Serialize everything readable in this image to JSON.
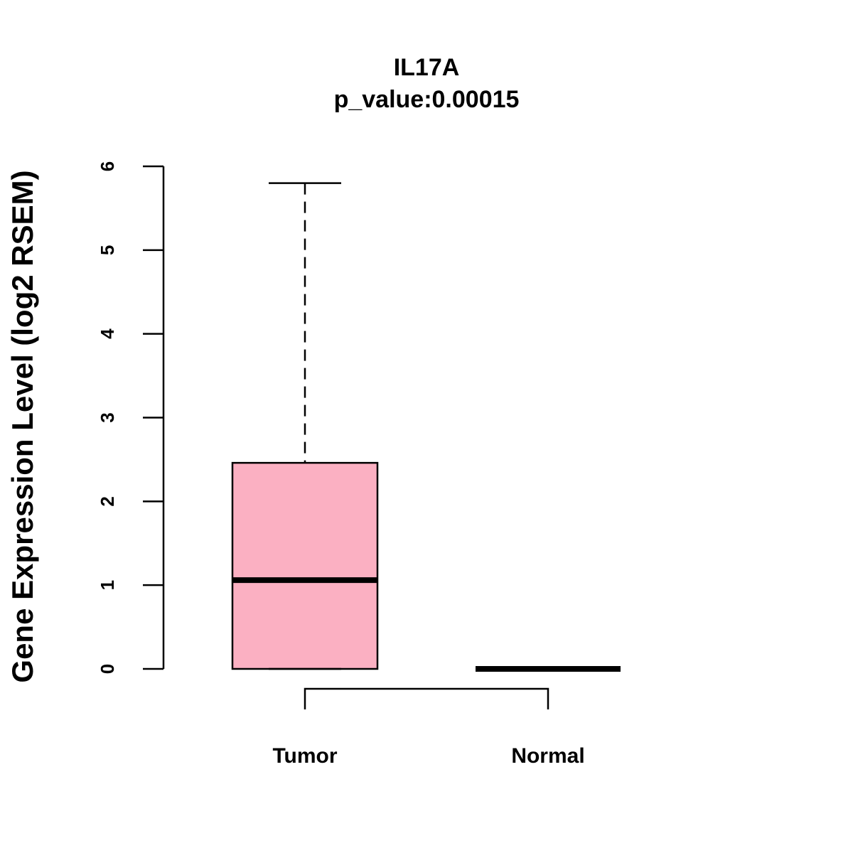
{
  "chart_data": {
    "type": "box",
    "title": "IL17A",
    "subtitle": "p_value:0.00015",
    "xlabel": "",
    "ylabel": "Gene Expression Level (log2 RSEM)",
    "ylim": [
      0,
      6
    ],
    "yticks": [
      0,
      1,
      2,
      3,
      4,
      5,
      6
    ],
    "grid": false,
    "categories": [
      "Tumor",
      "Normal"
    ],
    "boxes": [
      {
        "name": "Tumor",
        "min": 0,
        "q1": 0,
        "median": 1.06,
        "q3": 2.46,
        "max": 5.8,
        "fill": "#FBB0C2"
      },
      {
        "name": "Normal",
        "min": 0,
        "q1": 0,
        "median": 0,
        "q3": 0,
        "max": 0,
        "fill": "#FBB0C2"
      }
    ],
    "comparison_bracket": [
      "Tumor",
      "Normal"
    ]
  }
}
